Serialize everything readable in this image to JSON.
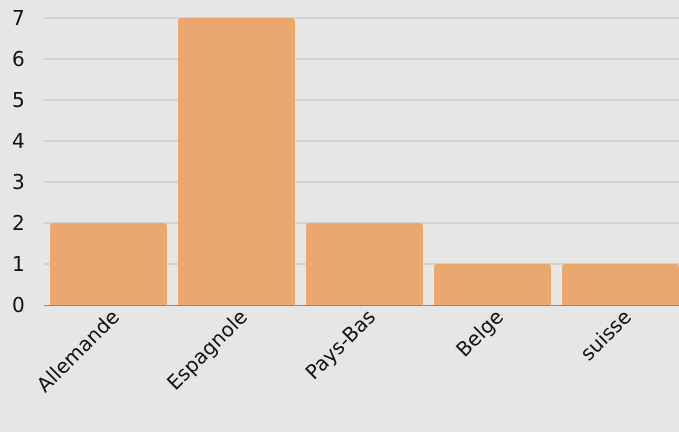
{
  "chart_data": {
    "type": "bar",
    "categories": [
      "Allemande",
      "Espagnole",
      "Pays-Bas",
      "Belge",
      "suisse"
    ],
    "values": [
      2,
      7,
      2,
      1,
      1
    ],
    "title": "",
    "xlabel": "",
    "ylabel": "",
    "ylim": [
      0,
      7
    ],
    "yticks": [
      "0",
      "1",
      "2",
      "3",
      "4",
      "5",
      "6",
      "7"
    ],
    "grid": true,
    "legend": "none",
    "bar_color": "#eaa76e",
    "background_color": "#e6e6e4"
  }
}
